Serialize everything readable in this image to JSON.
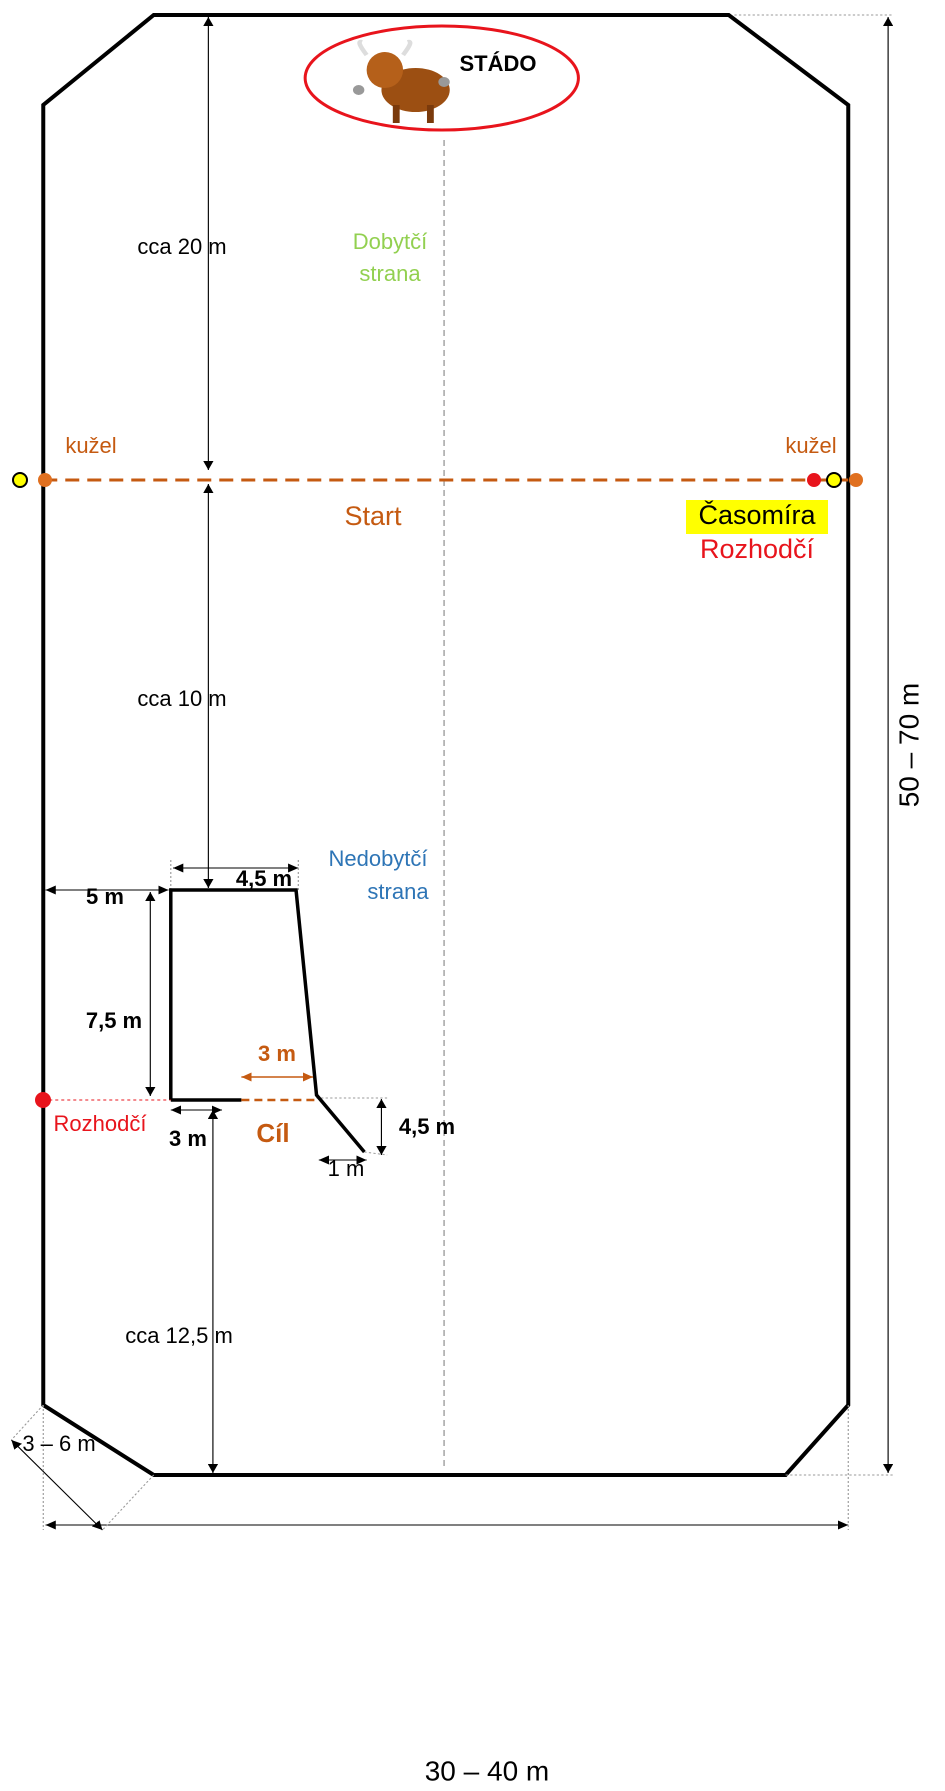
{
  "header": {
    "herd": "STÁDO"
  },
  "zones": {
    "cattle_side": [
      "Dobytčí",
      "strana"
    ],
    "non_cattle_side": [
      "Nedobytčí",
      "strana"
    ]
  },
  "markers": {
    "cone_left": "kužel",
    "cone_right": "kužel",
    "start": "Start",
    "timekeeper": "Časomíra",
    "referee_right": "Rozhodčí",
    "referee_left": "Rozhodčí",
    "finish": "Cíl"
  },
  "dimensions": {
    "to_herd": "cca 20 m",
    "to_pen": "cca 10 m",
    "to_end": "cca 12,5 m",
    "pen_offset": "5 m",
    "pen_width": "4,5 m",
    "pen_depth": "7,5 m",
    "gate": "3 m",
    "gate_post": "3 m",
    "wing_depth": "4,5 m",
    "wing_width": "1 m",
    "corner": "3 – 6 m",
    "field_width": "30 – 40 m",
    "field_length": "50 – 70 m"
  }
}
